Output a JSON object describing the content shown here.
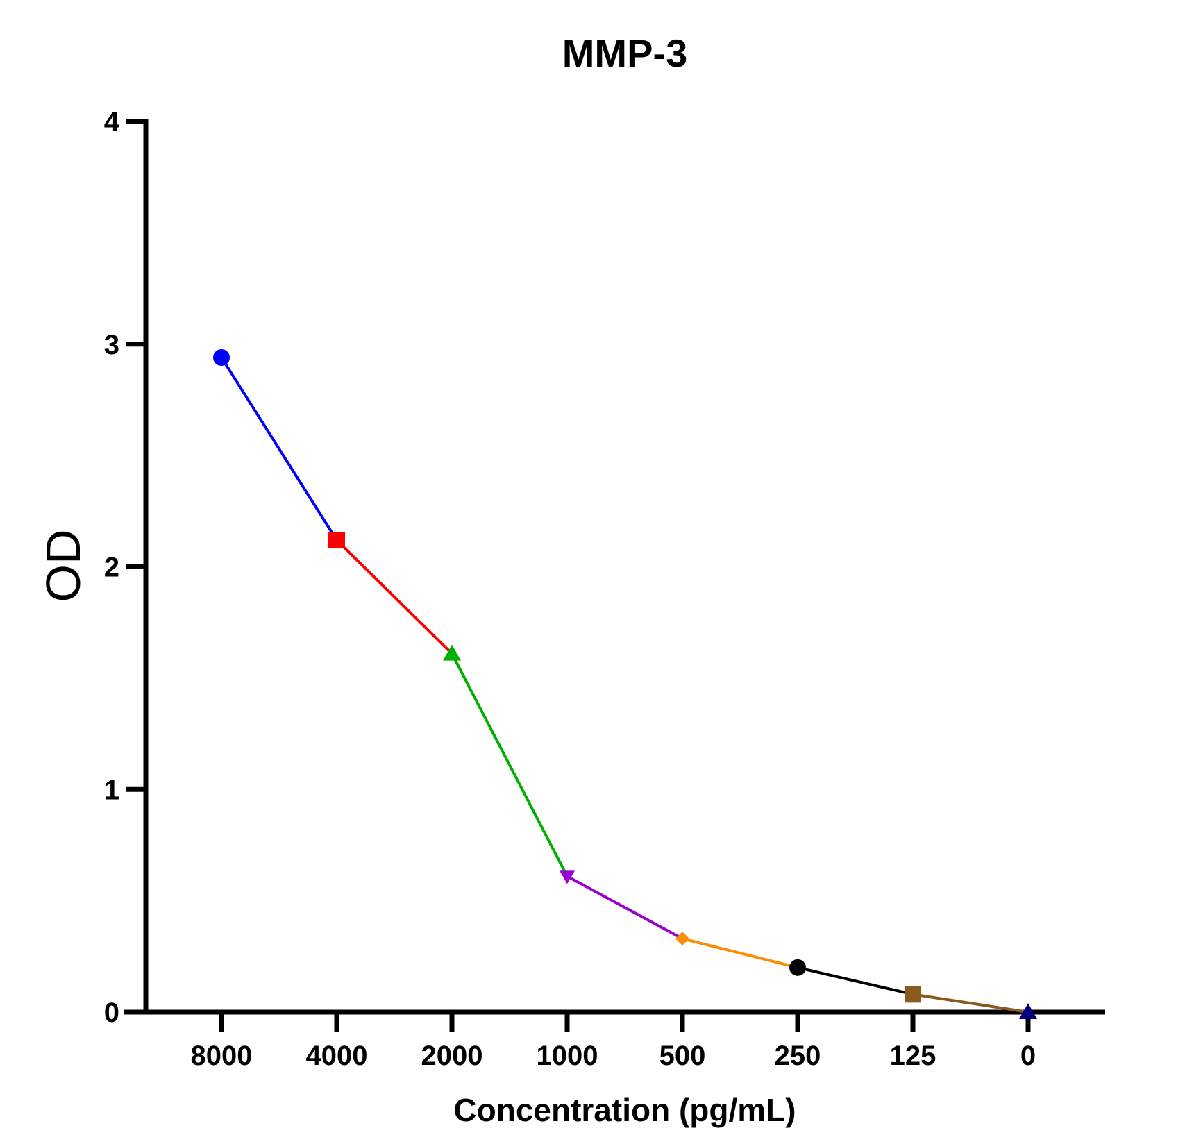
{
  "chart_data": {
    "type": "line",
    "title": "MMP-3",
    "xlabel": "Concentration (pg/mL)",
    "ylabel": "OD",
    "ylim": [
      0,
      4
    ],
    "yticks": [
      "0",
      "1",
      "2",
      "3",
      "4"
    ],
    "categories": [
      "8000",
      "4000",
      "2000",
      "1000",
      "500",
      "250",
      "125",
      "0"
    ],
    "values": [
      2.94,
      2.12,
      1.61,
      0.61,
      0.33,
      0.2,
      0.08,
      0.0
    ],
    "grid": false,
    "legend": "none",
    "points": [
      {
        "label": "8000",
        "value": 2.94,
        "color": "#0000ff",
        "marker": "circle",
        "segment_color": "#0000ff"
      },
      {
        "label": "4000",
        "value": 2.12,
        "color": "#ff0000",
        "marker": "square",
        "segment_color": "#ff0000"
      },
      {
        "label": "2000",
        "value": 1.61,
        "color": "#00b000",
        "marker": "triangle-up",
        "segment_color": "#00b000"
      },
      {
        "label": "1000",
        "value": 0.61,
        "color": "#9b00d3",
        "marker": "triangle-down",
        "segment_color": "#9b00d3"
      },
      {
        "label": "500",
        "value": 0.33,
        "color": "#ff8c00",
        "marker": "diamond",
        "segment_color": "#ff8c00"
      },
      {
        "label": "250",
        "value": 0.2,
        "color": "#000000",
        "marker": "circle",
        "segment_color": "#000000"
      },
      {
        "label": "125",
        "value": 0.08,
        "color": "#8b5a1e",
        "marker": "square",
        "segment_color": "#8b5a1e"
      },
      {
        "label": "0",
        "value": 0.0,
        "color": "#000080",
        "marker": "triangle-up",
        "segment_color": "#000080"
      }
    ]
  }
}
